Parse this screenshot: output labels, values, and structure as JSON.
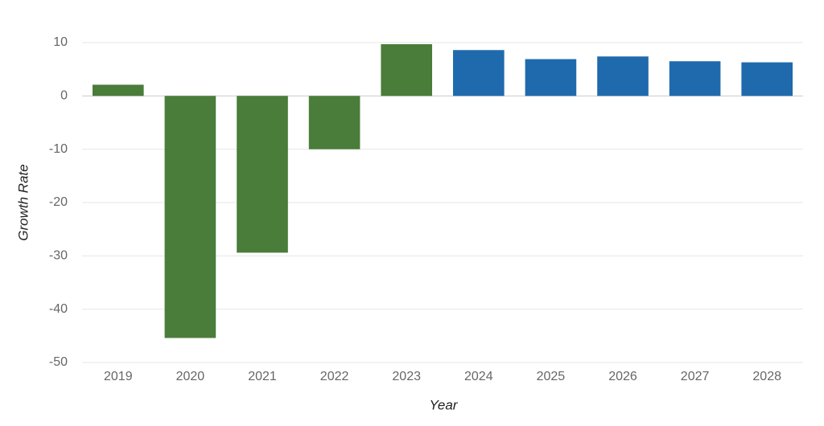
{
  "chart_data": {
    "type": "bar",
    "x_label": "Year",
    "y_label": "Growth Rate",
    "categories": [
      "2019",
      "2020",
      "2021",
      "2022",
      "2023",
      "2024",
      "2025",
      "2026",
      "2027",
      "2028"
    ],
    "values": [
      2.1,
      -45.4,
      -29.4,
      -10.0,
      9.7,
      8.6,
      6.9,
      7.4,
      6.5,
      6.3
    ],
    "colors": [
      "#4a7c3a",
      "#4a7c3a",
      "#4a7c3a",
      "#4a7c3a",
      "#4a7c3a",
      "#1f6aad",
      "#1f6aad",
      "#1f6aad",
      "#1f6aad",
      "#1f6aad"
    ],
    "ylim": [
      -50,
      10
    ],
    "yticks": [
      -50,
      -40,
      -30,
      -20,
      -10,
      0,
      10
    ],
    "grid": true
  }
}
